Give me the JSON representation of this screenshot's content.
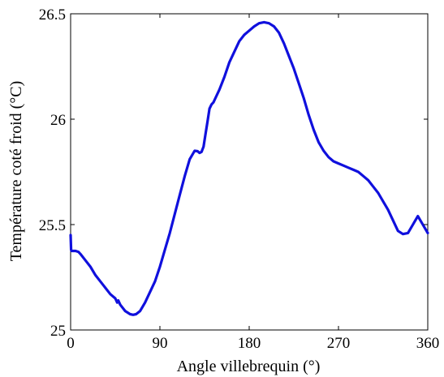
{
  "chart_data": {
    "type": "line",
    "title": "",
    "xlabel": "Angle villebrequin (°)",
    "ylabel": "Température coté froid (°C)",
    "xlim": [
      0,
      360
    ],
    "ylim": [
      25,
      26.5
    ],
    "grid": false,
    "legend": "none",
    "xticks": [
      0,
      90,
      180,
      270,
      360
    ],
    "xtick_labels": [
      "0",
      "90",
      "180",
      "270",
      "360"
    ],
    "yticks": [
      25,
      25.5,
      26,
      26.5
    ],
    "ytick_labels": [
      "25",
      "25.5",
      "26",
      "26.5"
    ],
    "series": [
      {
        "color": "#1010dd",
        "x": [
          0,
          0.5,
          1,
          3,
          5,
          8,
          10,
          15,
          20,
          25,
          30,
          35,
          40,
          45,
          47,
          48,
          50,
          55,
          60,
          63,
          66,
          70,
          75,
          80,
          85,
          90,
          95,
          100,
          105,
          110,
          115,
          120,
          125,
          128,
          130,
          132,
          134,
          136,
          138,
          140,
          142,
          144,
          146,
          150,
          155,
          160,
          165,
          170,
          175,
          180,
          185,
          190,
          195,
          200,
          205,
          210,
          215,
          220,
          225,
          230,
          235,
          240,
          245,
          250,
          255,
          260,
          265,
          270,
          275,
          280,
          285,
          290,
          295,
          300,
          305,
          310,
          315,
          320,
          325,
          330,
          335,
          340,
          345,
          350,
          355,
          360
        ],
        "y": [
          25.45,
          25.38,
          25.375,
          25.375,
          25.375,
          25.37,
          25.36,
          25.33,
          25.3,
          25.26,
          25.23,
          25.2,
          25.17,
          25.15,
          25.13,
          25.14,
          25.12,
          25.09,
          25.075,
          25.072,
          25.075,
          25.09,
          25.13,
          25.18,
          25.23,
          25.3,
          25.38,
          25.46,
          25.55,
          25.64,
          25.73,
          25.81,
          25.85,
          25.848,
          25.84,
          25.845,
          25.87,
          25.93,
          25.99,
          26.05,
          26.07,
          26.08,
          26.1,
          26.14,
          26.2,
          26.27,
          26.32,
          26.37,
          26.4,
          26.42,
          26.44,
          26.455,
          26.46,
          26.455,
          26.44,
          26.41,
          26.36,
          26.3,
          26.24,
          26.17,
          26.1,
          26.02,
          25.95,
          25.89,
          25.85,
          25.82,
          25.8,
          25.79,
          25.78,
          25.77,
          25.76,
          25.75,
          25.73,
          25.71,
          25.68,
          25.65,
          25.61,
          25.57,
          25.52,
          25.47,
          25.455,
          25.46,
          25.5,
          25.54,
          25.5,
          25.46
        ]
      }
    ]
  }
}
